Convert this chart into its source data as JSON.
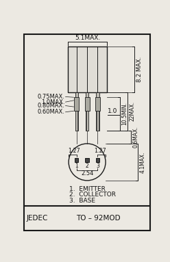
{
  "fig_width": 2.48,
  "fig_height": 3.83,
  "dpi": 100,
  "bg_color": "#ece9e2",
  "border_color": "#1a1a1a",
  "line_color": "#1a1a1a",
  "body_fill": "#e0ddd6",
  "lead_fill": "#c0bdb5",
  "pin_fill": "#444444",
  "dim_5_1": "5.1MAX.",
  "dim_8_2": "8.2 MAX.",
  "dim_0_75": "0.75MAX.",
  "dim_1_0max": "1.0MAX.",
  "dim_0_80": "0.80MAX.",
  "dim_0_60": "0.60MAX.",
  "dim_1_27_left": "1.27",
  "dim_1_27_right": "1.27",
  "dim_2_54": "2.54",
  "dim_1_0": "1.0",
  "dim_22": "22MAX.",
  "dim_10_5": "10.5MIN.",
  "dim_0_6": "0.6MAX.",
  "dim_4_1": "4.1MAX.",
  "label1": "1.  EMITTER",
  "label2": "2.  COLLECTOR",
  "label3": "3.  BASE",
  "footer": "JEDEC",
  "footer2": "TO – 92MOD"
}
